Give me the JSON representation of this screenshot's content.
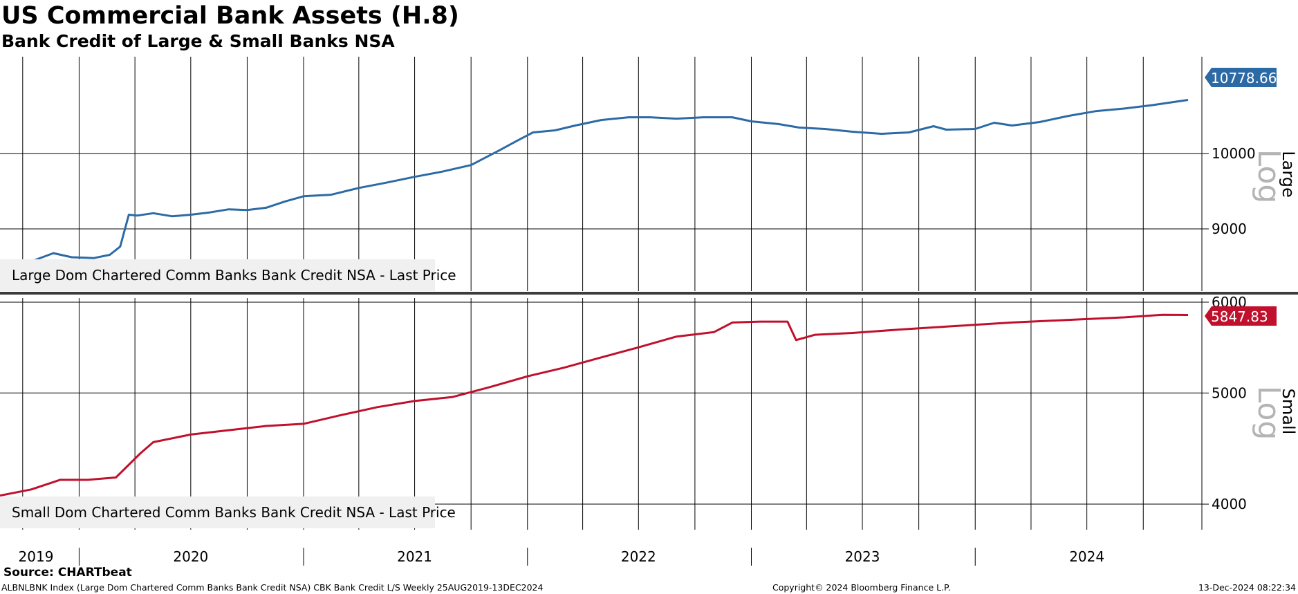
{
  "title": "US Commercial Bank Assets (H.8)",
  "subtitle": "Bank Credit of Large & Small Banks NSA",
  "source": "Source: CHARTbeat",
  "footer": {
    "left": "ALBNLBNK Index (Large Dom Chartered Comm Banks Bank Credit NSA) CBK Bank Credit L/S  Weekly 25AUG2019-13DEC2024",
    "center": "Copyright© 2024 Bloomberg Finance L.P.",
    "right": "13-Dec-2024 08:22:34"
  },
  "colors": {
    "large": "#2c6aa6",
    "small": "#c0102c"
  },
  "chart_data": [
    {
      "type": "line",
      "panel": "Large",
      "scale": "log",
      "axis_label_scale": "Log",
      "ylim": [
        8250,
        11450
      ],
      "yticks": [
        9000,
        10000
      ],
      "last_value": "10778.66",
      "legend": "Large Dom Chartered Comm Banks Bank Credit NSA - Last Price",
      "series": [
        {
          "name": "Large Dom Chartered Comm Banks Bank Credit NSA - Last Price",
          "points": [
            [
              "2019-08-25",
              8480
            ],
            [
              "2019-09-15",
              8550
            ],
            [
              "2019-10-15",
              8600
            ],
            [
              "2019-11-20",
              8700
            ],
            [
              "2019-12-20",
              8650
            ],
            [
              "2020-01-25",
              8640
            ],
            [
              "2020-02-20",
              8680
            ],
            [
              "2020-03-08",
              8780
            ],
            [
              "2020-03-22",
              9180
            ],
            [
              "2020-04-05",
              9170
            ],
            [
              "2020-05-01",
              9200
            ],
            [
              "2020-06-01",
              9160
            ],
            [
              "2020-07-01",
              9180
            ],
            [
              "2020-08-01",
              9210
            ],
            [
              "2020-09-01",
              9250
            ],
            [
              "2020-10-01",
              9240
            ],
            [
              "2020-11-01",
              9270
            ],
            [
              "2020-12-01",
              9350
            ],
            [
              "2021-01-01",
              9420
            ],
            [
              "2021-02-15",
              9440
            ],
            [
              "2021-04-01",
              9530
            ],
            [
              "2021-05-15",
              9600
            ],
            [
              "2021-07-01",
              9680
            ],
            [
              "2021-08-15",
              9750
            ],
            [
              "2021-10-01",
              9840
            ],
            [
              "2021-11-15",
              10040
            ],
            [
              "2021-12-15",
              10180
            ],
            [
              "2022-01-10",
              10300
            ],
            [
              "2022-02-15",
              10330
            ],
            [
              "2022-03-20",
              10400
            ],
            [
              "2022-05-01",
              10480
            ],
            [
              "2022-06-15",
              10520
            ],
            [
              "2022-07-20",
              10520
            ],
            [
              "2022-09-01",
              10500
            ],
            [
              "2022-10-15",
              10520
            ],
            [
              "2022-12-01",
              10520
            ],
            [
              "2023-01-01",
              10460
            ],
            [
              "2023-02-15",
              10420
            ],
            [
              "2023-03-20",
              10370
            ],
            [
              "2023-05-01",
              10350
            ],
            [
              "2023-06-15",
              10310
            ],
            [
              "2023-08-01",
              10280
            ],
            [
              "2023-09-15",
              10300
            ],
            [
              "2023-10-25",
              10390
            ],
            [
              "2023-11-15",
              10340
            ],
            [
              "2024-01-01",
              10350
            ],
            [
              "2024-02-01",
              10440
            ],
            [
              "2024-03-01",
              10400
            ],
            [
              "2024-04-15",
              10450
            ],
            [
              "2024-06-01",
              10540
            ],
            [
              "2024-07-15",
              10610
            ],
            [
              "2024-09-01",
              10650
            ],
            [
              "2024-10-15",
              10700
            ],
            [
              "2024-12-13",
              10778.66
            ]
          ]
        }
      ]
    },
    {
      "type": "line",
      "panel": "Small",
      "scale": "log",
      "axis_label_scale": "Log",
      "ylim": [
        3800,
        6050
      ],
      "yticks": [
        4000,
        5000,
        6000
      ],
      "last_value": "5847.83",
      "legend": "Small Dom Chartered Comm Banks Bank Credit NSA - Last Price",
      "series": [
        {
          "name": "Small Dom Chartered Comm Banks Bank Credit NSA - Last Price",
          "points": [
            [
              "2019-08-25",
              4070
            ],
            [
              "2019-10-15",
              4120
            ],
            [
              "2019-12-01",
              4200
            ],
            [
              "2020-01-15",
              4200
            ],
            [
              "2020-03-01",
              4220
            ],
            [
              "2020-04-10",
              4430
            ],
            [
              "2020-05-01",
              4530
            ],
            [
              "2020-07-01",
              4600
            ],
            [
              "2020-09-01",
              4640
            ],
            [
              "2020-11-01",
              4680
            ],
            [
              "2021-01-01",
              4700
            ],
            [
              "2021-03-01",
              4780
            ],
            [
              "2021-05-01",
              4860
            ],
            [
              "2021-07-01",
              4920
            ],
            [
              "2021-09-01",
              4960
            ],
            [
              "2021-11-01",
              5060
            ],
            [
              "2022-01-01",
              5170
            ],
            [
              "2022-03-01",
              5260
            ],
            [
              "2022-05-01",
              5370
            ],
            [
              "2022-07-01",
              5480
            ],
            [
              "2022-09-01",
              5600
            ],
            [
              "2022-11-01",
              5650
            ],
            [
              "2022-12-01",
              5760
            ],
            [
              "2023-01-15",
              5770
            ],
            [
              "2023-03-01",
              5770
            ],
            [
              "2023-03-15",
              5560
            ],
            [
              "2023-04-15",
              5620
            ],
            [
              "2023-06-15",
              5640
            ],
            [
              "2023-09-01",
              5680
            ],
            [
              "2023-12-01",
              5720
            ],
            [
              "2024-03-01",
              5760
            ],
            [
              "2024-06-01",
              5790
            ],
            [
              "2024-09-01",
              5820
            ],
            [
              "2024-11-01",
              5850
            ],
            [
              "2024-12-13",
              5847.83
            ]
          ]
        }
      ]
    }
  ],
  "x_axis": {
    "year_labels": [
      "2019",
      "2020",
      "2021",
      "2022",
      "2023",
      "2024"
    ]
  }
}
